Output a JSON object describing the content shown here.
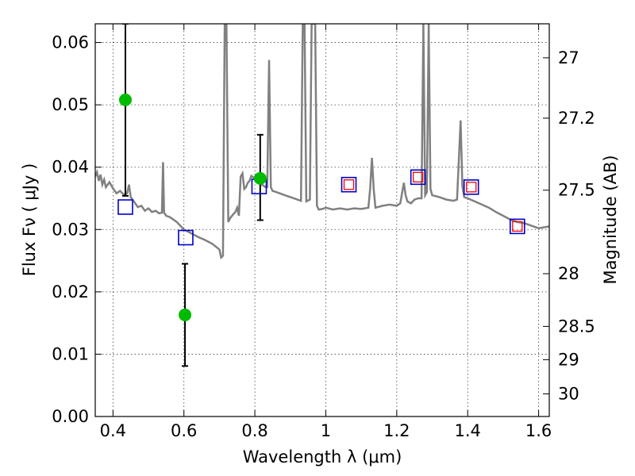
{
  "chart_data": {
    "type": "scatter",
    "title": "",
    "xlabel": "Wavelength  λ (μm)",
    "ylabel": "Flux  Fν  ( μJy )",
    "y2label": "Magnitude (AB)",
    "xlim": [
      0.35,
      1.63
    ],
    "ylim": [
      0.0,
      0.063
    ],
    "grid": true,
    "x_ticks": [
      0.4,
      0.6,
      0.8,
      1.0,
      1.2,
      1.4,
      1.6
    ],
    "x_tick_labels": [
      "0.4",
      "0.6",
      "0.8",
      "1",
      "1.2",
      "1.4",
      "1.6"
    ],
    "y_ticks": [
      0.0,
      0.01,
      0.02,
      0.03,
      0.04,
      0.05,
      0.06
    ],
    "y_tick_labels": [
      "0.00",
      "0.01",
      "0.02",
      "0.03",
      "0.04",
      "0.05",
      "0.06"
    ],
    "y2_ticks": [
      27,
      27.2,
      27.5,
      28,
      28.5,
      29,
      30
    ],
    "y2_tick_labels": [
      "27",
      "27.2",
      "27.5",
      "28",
      "28.5",
      "29",
      "30"
    ],
    "colors": {
      "spectrum": "#808080",
      "observed": "#00bb00",
      "model_band": "#0000cc",
      "model_band_inner": "#ff0000",
      "errorbar": "#000000"
    },
    "series": [
      {
        "kind": "spectrum",
        "points": [
          [
            0.35,
            0.0385
          ],
          [
            0.355,
            0.0392
          ],
          [
            0.36,
            0.0378
          ],
          [
            0.365,
            0.0388
          ],
          [
            0.37,
            0.0372
          ],
          [
            0.375,
            0.038
          ],
          [
            0.38,
            0.0368
          ],
          [
            0.39,
            0.0376
          ],
          [
            0.4,
            0.0366
          ],
          [
            0.41,
            0.0358
          ],
          [
            0.42,
            0.0362
          ],
          [
            0.43,
            0.0356
          ],
          [
            0.44,
            0.0358
          ],
          [
            0.445,
            0.0372
          ],
          [
            0.45,
            0.0352
          ],
          [
            0.46,
            0.0344
          ],
          [
            0.47,
            0.0336
          ],
          [
            0.48,
            0.0338
          ],
          [
            0.49,
            0.033
          ],
          [
            0.5,
            0.0334
          ],
          [
            0.51,
            0.0328
          ],
          [
            0.52,
            0.033
          ],
          [
            0.53,
            0.0326
          ],
          [
            0.538,
            0.0327
          ],
          [
            0.541,
            0.0408
          ],
          [
            0.544,
            0.0327
          ],
          [
            0.55,
            0.0322
          ],
          [
            0.56,
            0.032
          ],
          [
            0.57,
            0.0316
          ],
          [
            0.58,
            0.0312
          ],
          [
            0.59,
            0.0306
          ],
          [
            0.6,
            0.03
          ],
          [
            0.62,
            0.0294
          ],
          [
            0.64,
            0.0288
          ],
          [
            0.66,
            0.0283
          ],
          [
            0.68,
            0.0277
          ],
          [
            0.7,
            0.0268
          ],
          [
            0.705,
            0.0255
          ],
          [
            0.71,
            0.0258
          ],
          [
            0.715,
            0.063
          ],
          [
            0.72,
            0.063
          ],
          [
            0.725,
            0.0312
          ],
          [
            0.73,
            0.0318
          ],
          [
            0.74,
            0.0325
          ],
          [
            0.745,
            0.0328
          ],
          [
            0.75,
            0.0335
          ],
          [
            0.755,
            0.0322
          ],
          [
            0.76,
            0.0385
          ],
          [
            0.765,
            0.039
          ],
          [
            0.77,
            0.0365
          ],
          [
            0.775,
            0.0368
          ],
          [
            0.78,
            0.0375
          ],
          [
            0.785,
            0.0378
          ],
          [
            0.79,
            0.0386
          ],
          [
            0.8,
            0.0382
          ],
          [
            0.81,
            0.0378
          ],
          [
            0.82,
            0.0372
          ],
          [
            0.83,
            0.0368
          ],
          [
            0.835,
            0.0368
          ],
          [
            0.84,
            0.0572
          ],
          [
            0.845,
            0.0368
          ],
          [
            0.85,
            0.0362
          ],
          [
            0.86,
            0.036
          ],
          [
            0.87,
            0.0358
          ],
          [
            0.88,
            0.0356
          ],
          [
            0.89,
            0.0354
          ],
          [
            0.9,
            0.0352
          ],
          [
            0.92,
            0.0348
          ],
          [
            0.93,
            0.0346
          ],
          [
            0.935,
            0.063
          ],
          [
            0.94,
            0.063
          ],
          [
            0.945,
            0.0345
          ],
          [
            0.955,
            0.0348
          ],
          [
            0.96,
            0.063
          ],
          [
            0.965,
            0.063
          ],
          [
            0.97,
            0.063
          ],
          [
            0.975,
            0.0338
          ],
          [
            0.98,
            0.0332
          ],
          [
            0.99,
            0.0333
          ],
          [
            1.0,
            0.0335
          ],
          [
            1.02,
            0.0332
          ],
          [
            1.04,
            0.0334
          ],
          [
            1.06,
            0.0332
          ],
          [
            1.08,
            0.0334
          ],
          [
            1.1,
            0.0333
          ],
          [
            1.12,
            0.0335
          ],
          [
            1.125,
            0.0365
          ],
          [
            1.13,
            0.0415
          ],
          [
            1.135,
            0.0365
          ],
          [
            1.14,
            0.0335
          ],
          [
            1.16,
            0.0338
          ],
          [
            1.18,
            0.034
          ],
          [
            1.2,
            0.0338
          ],
          [
            1.21,
            0.0342
          ],
          [
            1.22,
            0.0375
          ],
          [
            1.225,
            0.0355
          ],
          [
            1.23,
            0.0345
          ],
          [
            1.24,
            0.0342
          ],
          [
            1.25,
            0.0348
          ],
          [
            1.26,
            0.035
          ],
          [
            1.27,
            0.035
          ],
          [
            1.275,
            0.063
          ],
          [
            1.28,
            0.0355
          ],
          [
            1.285,
            0.036
          ],
          [
            1.29,
            0.063
          ],
          [
            1.295,
            0.0365
          ],
          [
            1.3,
            0.0355
          ],
          [
            1.32,
            0.0352
          ],
          [
            1.34,
            0.0348
          ],
          [
            1.36,
            0.0346
          ],
          [
            1.37,
            0.0348
          ],
          [
            1.38,
            0.0475
          ],
          [
            1.385,
            0.037
          ],
          [
            1.39,
            0.0352
          ],
          [
            1.4,
            0.035
          ],
          [
            1.42,
            0.0345
          ],
          [
            1.44,
            0.034
          ],
          [
            1.46,
            0.0335
          ],
          [
            1.48,
            0.0328
          ],
          [
            1.5,
            0.0322
          ],
          [
            1.52,
            0.0316
          ],
          [
            1.54,
            0.0312
          ],
          [
            1.56,
            0.031
          ],
          [
            1.58,
            0.0306
          ],
          [
            1.6,
            0.0302
          ],
          [
            1.63,
            0.0305
          ]
        ]
      },
      {
        "kind": "observed",
        "points": [
          {
            "x": 0.435,
            "y": 0.0508,
            "yerr_low": 0.0354,
            "yerr_high": 0.063
          },
          {
            "x": 0.603,
            "y": 0.0163,
            "yerr_low": 0.0081,
            "yerr_high": 0.0245
          },
          {
            "x": 0.815,
            "y": 0.0382,
            "yerr_low": 0.0315,
            "yerr_high": 0.0452
          }
        ]
      },
      {
        "kind": "model_band",
        "points": [
          {
            "x": 0.435,
            "y": 0.0336,
            "inner": false
          },
          {
            "x": 0.605,
            "y": 0.0287,
            "inner": false
          },
          {
            "x": 0.812,
            "y": 0.0369,
            "inner": false
          },
          {
            "x": 1.065,
            "y": 0.0372,
            "inner": true
          },
          {
            "x": 1.26,
            "y": 0.0384,
            "inner": true
          },
          {
            "x": 1.41,
            "y": 0.0368,
            "inner": true
          },
          {
            "x": 1.54,
            "y": 0.0305,
            "inner": true
          }
        ]
      }
    ]
  }
}
